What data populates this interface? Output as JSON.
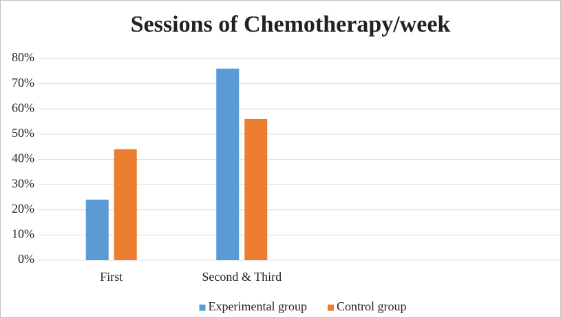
{
  "chart_data": {
    "type": "bar",
    "title": "Sessions of Chemotherapy/week",
    "categories": [
      "First",
      "Second & Third",
      null,
      null
    ],
    "series": [
      {
        "name": "Experimental group",
        "color": "#5b9bd5",
        "values": [
          24,
          76,
          null,
          null
        ]
      },
      {
        "name": "Control group",
        "color": "#ed7d31",
        "values": [
          44,
          56,
          null,
          null
        ]
      }
    ],
    "ylim": [
      0,
      80
    ],
    "yticks": [
      {
        "value": 0,
        "label": "0%"
      },
      {
        "value": 10,
        "label": "10%"
      },
      {
        "value": 20,
        "label": "20%"
      },
      {
        "value": 30,
        "label": "30%"
      },
      {
        "value": 40,
        "label": "40%"
      },
      {
        "value": 50,
        "label": "50%"
      },
      {
        "value": 60,
        "label": "60%"
      },
      {
        "value": 70,
        "label": "70%"
      },
      {
        "value": 80,
        "label": "80%"
      }
    ],
    "grid": true,
    "legend": "bottom"
  }
}
